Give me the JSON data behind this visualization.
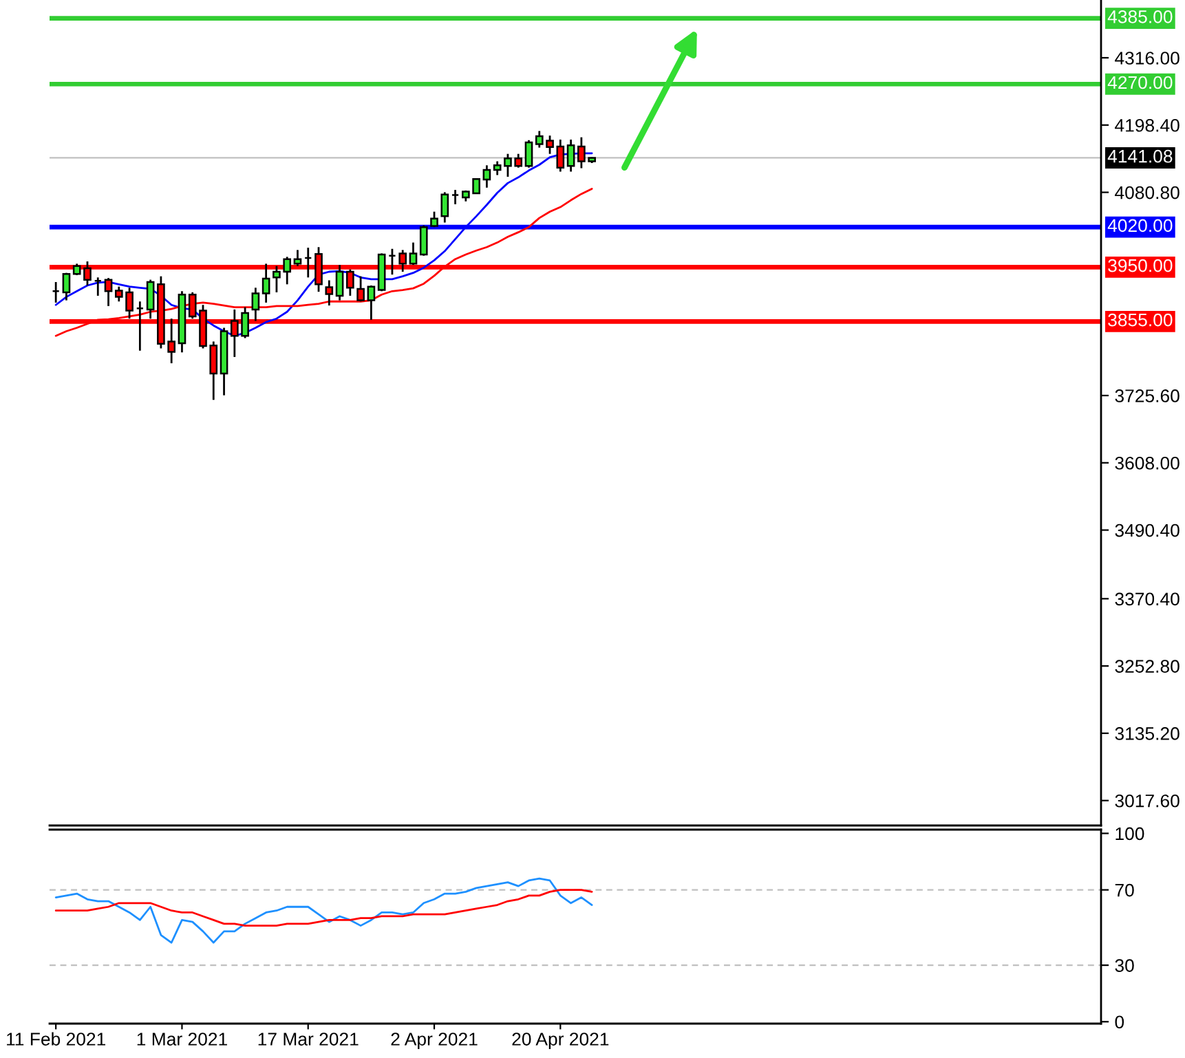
{
  "chart_data": [
    {
      "type": "candlestick",
      "categories": [
        null,
        null,
        null,
        null,
        null,
        null,
        null,
        null,
        null,
        null,
        null,
        null,
        null,
        null,
        null,
        null,
        null,
        null,
        null,
        null,
        null,
        null,
        null,
        null,
        null,
        null,
        null,
        null,
        null,
        null,
        null,
        null,
        null,
        null,
        null,
        null,
        null,
        null,
        null,
        null,
        null,
        null,
        null,
        null,
        null,
        null,
        null,
        null,
        null,
        null,
        null,
        null
      ],
      "ohlc": [
        [
          3908,
          3924,
          3888,
          3908
        ],
        [
          3906,
          3940,
          3892,
          3938
        ],
        [
          3938,
          3956,
          3936,
          3952
        ],
        [
          3948,
          3960,
          3918,
          3928
        ],
        [
          3926,
          3932,
          3900,
          3926
        ],
        [
          3928,
          3931,
          3882,
          3908
        ],
        [
          3909,
          3916,
          3890,
          3898
        ],
        [
          3906,
          3914,
          3860,
          3874
        ],
        [
          3878,
          3890,
          3804,
          3878
        ],
        [
          3876,
          3928,
          3860,
          3924
        ],
        [
          3920,
          3934,
          3808,
          3816
        ],
        [
          3820,
          3860,
          3782,
          3802
        ],
        [
          3817,
          3908,
          3801,
          3902
        ],
        [
          3902,
          3906,
          3860,
          3864
        ],
        [
          3874,
          3884,
          3808,
          3812
        ],
        [
          3813,
          3820,
          3718,
          3764
        ],
        [
          3764,
          3844,
          3726,
          3838
        ],
        [
          3856,
          3876,
          3793,
          3830
        ],
        [
          3830,
          3880,
          3826,
          3870
        ],
        [
          3876,
          3914,
          3856,
          3904
        ],
        [
          3904,
          3956,
          3888,
          3930
        ],
        [
          3932,
          3952,
          3906,
          3942
        ],
        [
          3942,
          3968,
          3920,
          3964
        ],
        [
          3956,
          3980,
          3952,
          3964
        ],
        [
          3966,
          3984,
          3932,
          3966
        ],
        [
          3973,
          3985,
          3907,
          3920
        ],
        [
          3915,
          3927,
          3883,
          3903
        ],
        [
          3900,
          3954,
          3892,
          3942
        ],
        [
          3942,
          3946,
          3900,
          3914
        ],
        [
          3912,
          3934,
          3890,
          3892
        ],
        [
          3892,
          3918,
          3858,
          3916
        ],
        [
          3910,
          3974,
          3908,
          3972
        ],
        [
          3970,
          3982,
          3937,
          3970
        ],
        [
          3974,
          3980,
          3942,
          3956
        ],
        [
          3956,
          3993,
          3954,
          3974
        ],
        [
          3972,
          4023,
          3970,
          4020
        ],
        [
          4022,
          4047,
          4020,
          4035
        ],
        [
          4039,
          4081,
          4028,
          4077
        ],
        [
          4076,
          4085,
          4060,
          4076
        ],
        [
          4072,
          4084,
          4065,
          4082
        ],
        [
          4079,
          4105,
          4078,
          4104
        ],
        [
          4103,
          4128,
          4089,
          4120
        ],
        [
          4120,
          4135,
          4111,
          4128
        ],
        [
          4127,
          4148,
          4108,
          4140
        ],
        [
          4140,
          4148,
          4124,
          4127
        ],
        [
          4127,
          4172,
          4124,
          4168
        ],
        [
          4165,
          4188,
          4159,
          4179
        ],
        [
          4171,
          4180,
          4148,
          4160
        ],
        [
          4161,
          4173,
          4117,
          4124
        ],
        [
          4127,
          4173,
          4117,
          4163
        ],
        [
          4161,
          4177,
          4123,
          4135
        ],
        [
          4135,
          4142,
          4132,
          4141
        ]
      ],
      "colors": [
        "#000000",
        "#33e633",
        "#33e633",
        "#ff0000",
        "#000000",
        "#ff0000",
        "#ff0000",
        "#ff0000",
        "#000000",
        "#33e633",
        "#ff0000",
        "#ff0000",
        "#33e633",
        "#ff0000",
        "#ff0000",
        "#ff0000",
        "#33e633",
        "#ff0000",
        "#33e633",
        "#33e633",
        "#33e633",
        "#33e633",
        "#33e633",
        "#33e633",
        "#000000",
        "#ff0000",
        "#ff0000",
        "#33e633",
        "#ff0000",
        "#ff0000",
        "#33e633",
        "#33e633",
        "#000000",
        "#ff0000",
        "#33e633",
        "#33e633",
        "#33e633",
        "#33e633",
        "#000000",
        "#33e633",
        "#33e633",
        "#33e633",
        "#33e633",
        "#33e633",
        "#ff0000",
        "#33e633",
        "#33e633",
        "#ff0000",
        "#ff0000",
        "#33e633",
        "#ff0000",
        "#33e633"
      ],
      "series": [
        {
          "type": "line",
          "color": "#0000ff",
          "values": [
            3884,
            3898,
            3908,
            3918,
            3923,
            3924,
            3920,
            3916,
            3914,
            3912,
            3900,
            3884,
            3878,
            3876,
            3860,
            3848,
            3838,
            3830,
            3835,
            3844,
            3854,
            3860,
            3872,
            3892,
            3916,
            3937,
            3942,
            3943,
            3940,
            3932,
            3929,
            3929,
            3929,
            3934,
            3940,
            3949,
            3962,
            3978,
            3999,
            4020,
            4039,
            4059,
            4080,
            4097,
            4107,
            4119,
            4129,
            4142,
            4147,
            4148,
            4149,
            4149
          ]
        },
        {
          "type": "line",
          "color": "#ff0000",
          "values": [
            3830,
            3838,
            3844,
            3851,
            3858,
            3859,
            3861,
            3864,
            3867,
            3872,
            3874,
            3877,
            3882,
            3886,
            3888,
            3886,
            3883,
            3880,
            3880,
            3880,
            3880,
            3882,
            3882,
            3882,
            3884,
            3886,
            3890,
            3890,
            3890,
            3890,
            3892,
            3902,
            3908,
            3910,
            3913,
            3921,
            3935,
            3951,
            3964,
            3972,
            3979,
            3985,
            3993,
            4003,
            4011,
            4020,
            4036,
            4047,
            4055,
            4067,
            4078,
            4087
          ]
        }
      ],
      "ylim": [
        2974,
        4417
      ],
      "yticks": [
        {
          "value": 4316,
          "label": "4316.00"
        },
        {
          "value": 4198.4,
          "label": "4198.40"
        },
        {
          "value": 4080.8,
          "label": "4080.80"
        },
        {
          "value": 3725.6,
          "label": "3725.60"
        },
        {
          "value": 3608,
          "label": "3608.00"
        },
        {
          "value": 3490.4,
          "label": "3490.40"
        },
        {
          "value": 3370.4,
          "label": "3370.40"
        },
        {
          "value": 3252.8,
          "label": "3252.80"
        },
        {
          "value": 3135.2,
          "label": "3135.20"
        },
        {
          "value": 3017.6,
          "label": "3017.60"
        }
      ],
      "ref_lines": [
        {
          "axis": "y",
          "value": 4385,
          "label": "4385.00",
          "color": "#32cd32"
        },
        {
          "axis": "y",
          "value": 4270,
          "label": "4270.00",
          "color": "#32cd32"
        },
        {
          "axis": "y",
          "value": 4141.08,
          "label": "4141.08",
          "color": "#c0c0c0"
        },
        {
          "axis": "y",
          "value": 4020,
          "label": "4020.00",
          "color": "#0000ff"
        },
        {
          "axis": "y",
          "value": 3950,
          "label": "3950.00",
          "color": "#ff0000"
        },
        {
          "axis": "y",
          "value": 3855,
          "label": "3855.00",
          "color": "#ff0000"
        }
      ],
      "tick_labels": "y"
    },
    {
      "type": "line",
      "categories": [
        "11 Feb 2021",
        null,
        null,
        null,
        null,
        null,
        null,
        null,
        null,
        null,
        null,
        null,
        "1 Mar 2021",
        null,
        null,
        null,
        null,
        null,
        null,
        null,
        null,
        null,
        null,
        null,
        "17 Mar 2021",
        null,
        null,
        null,
        null,
        null,
        null,
        null,
        null,
        null,
        null,
        null,
        "2 Apr 2021",
        null,
        null,
        null,
        null,
        null,
        null,
        null,
        null,
        null,
        null,
        null,
        "20 Apr 2021",
        null,
        null,
        null
      ],
      "series": [
        {
          "color": "#1e90ff",
          "values": [
            66,
            67,
            68,
            65,
            64,
            64,
            61,
            58,
            54,
            61,
            46,
            42,
            54,
            53,
            48,
            42,
            48,
            48,
            52,
            55,
            58,
            59,
            61,
            61,
            61,
            57,
            53,
            56,
            54,
            51,
            54,
            58,
            58,
            57,
            58,
            63,
            65,
            68,
            68,
            69,
            71,
            72,
            73,
            74,
            72,
            75,
            76,
            75,
            67,
            63,
            66,
            62
          ]
        },
        {
          "color": "#ff0000",
          "values": [
            59,
            59,
            59,
            59,
            60,
            61,
            63,
            63,
            63,
            63,
            61,
            59,
            58,
            58,
            56,
            54,
            52,
            52,
            51,
            51,
            51,
            51,
            52,
            52,
            52,
            53,
            54,
            54,
            54,
            55,
            55,
            56,
            56,
            56,
            57,
            57,
            57,
            57,
            58,
            59,
            60,
            61,
            62,
            64,
            65,
            67,
            67,
            69,
            70,
            70,
            70,
            69
          ]
        }
      ],
      "ylim": [
        -1,
        102
      ],
      "yticks": [
        0,
        30,
        70,
        100
      ],
      "ref_lines": [
        {
          "axis": "y",
          "value": 70,
          "color": "#c0c0c0",
          "line_style": "dashed"
        },
        {
          "axis": "y",
          "value": 30,
          "color": "#c0c0c0",
          "line_style": "dashed"
        }
      ]
    }
  ]
}
